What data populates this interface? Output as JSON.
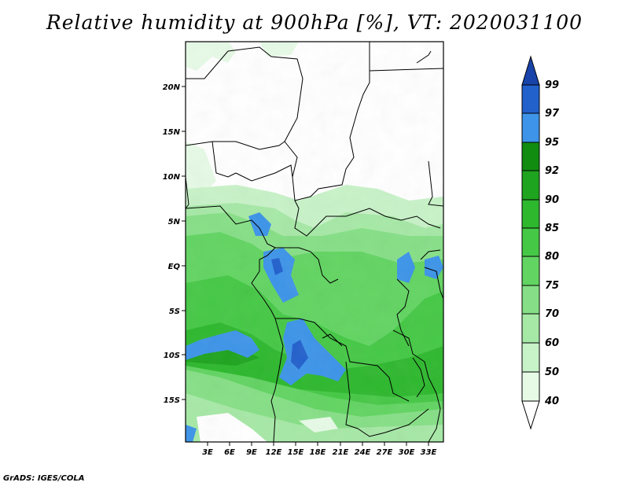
{
  "title": "Relative humidity at 900hPa [%], VT: 2020031100",
  "credit": "GrADS: IGES/COLA",
  "map": {
    "lat_labels": [
      "20N",
      "15N",
      "10N",
      "5N",
      "EQ",
      "5S",
      "10S",
      "15S"
    ],
    "lon_labels": [
      "3E",
      "6E",
      "9E",
      "12E",
      "15E",
      "18E",
      "21E",
      "24E",
      "27E",
      "30E",
      "33E"
    ],
    "lon_range": [
      0,
      35
    ],
    "lat_range": [
      -20,
      25
    ]
  },
  "colorbar": {
    "levels": [
      "40",
      "50",
      "60",
      "70",
      "75",
      "80",
      "85",
      "90",
      "92",
      "95",
      "97",
      "99"
    ],
    "colors": [
      "#ffffff",
      "#e6fae6",
      "#c8f2c8",
      "#a6e8a6",
      "#86df86",
      "#62d462",
      "#45c845",
      "#2eb82e",
      "#1ea41e",
      "#118c11",
      "#3d94e8",
      "#2260cc",
      "#1844aa"
    ]
  }
}
